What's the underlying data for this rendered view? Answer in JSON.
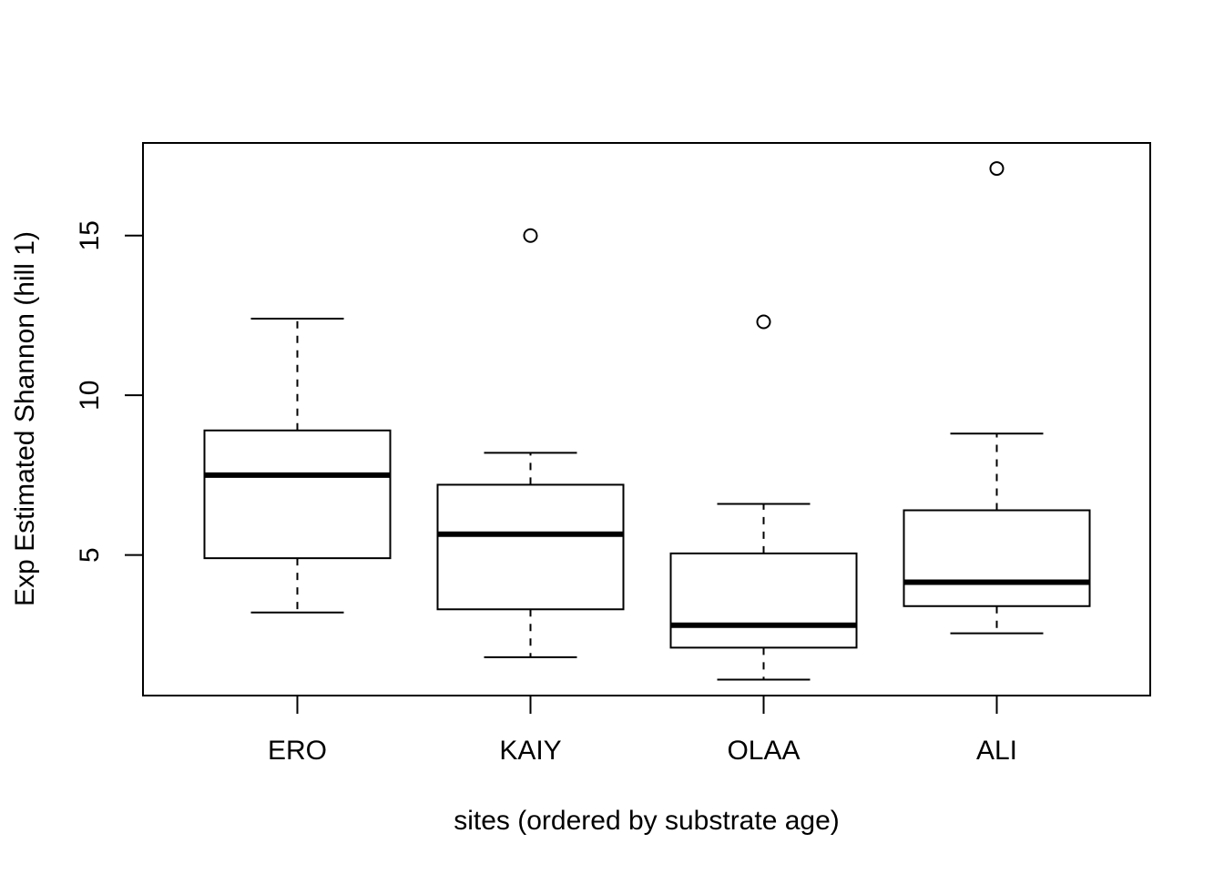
{
  "chart_data": {
    "type": "boxplot",
    "title": "",
    "xlabel": "sites (ordered by substrate age)",
    "ylabel": "Exp Estimated Shannon (hill 1)",
    "categories": [
      "ERO",
      "KAIY",
      "OLAA",
      "ALI"
    ],
    "ylim": [
      0.6,
      17.9
    ],
    "yticks": [
      5,
      10,
      15
    ],
    "ytick_labels": [
      "5",
      "10",
      "15"
    ],
    "grid": false,
    "boxes": [
      {
        "name": "ERO",
        "whisker_low": 3.2,
        "q1": 4.9,
        "median": 7.5,
        "q3": 8.9,
        "whisker_high": 12.4,
        "outliers": []
      },
      {
        "name": "KAIY",
        "whisker_low": 1.8,
        "q1": 3.3,
        "median": 5.65,
        "q3": 7.2,
        "whisker_high": 8.2,
        "outliers": [
          15.0
        ]
      },
      {
        "name": "OLAA",
        "whisker_low": 1.1,
        "q1": 2.1,
        "median": 2.8,
        "q3": 5.05,
        "whisker_high": 6.6,
        "outliers": [
          12.3
        ]
      },
      {
        "name": "ALI",
        "whisker_low": 2.55,
        "q1": 3.4,
        "median": 4.15,
        "q3": 6.4,
        "whisker_high": 8.8,
        "outliers": [
          17.1
        ]
      }
    ]
  }
}
